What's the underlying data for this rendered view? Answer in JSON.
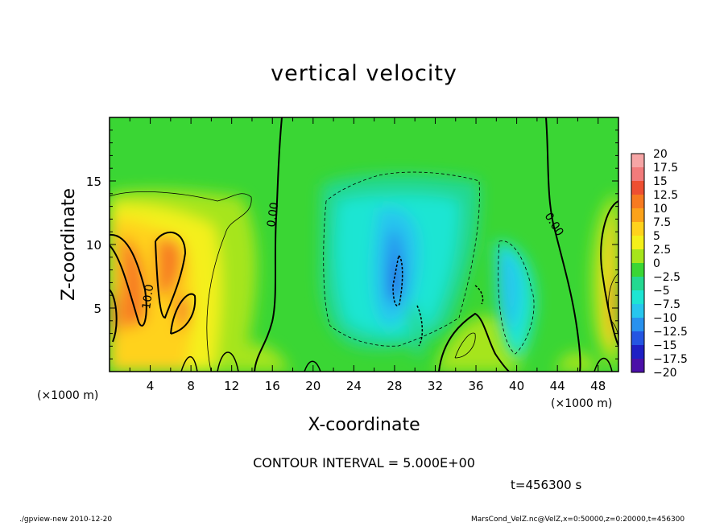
{
  "title": "vertical velocity",
  "chart_data": {
    "type": "heatmap",
    "title": "vertical velocity",
    "xlabel": "X-coordinate",
    "ylabel": "Z-coordinate",
    "x_unit": "(×1000 m)",
    "y_unit": "(×1000 m)",
    "xlim": [
      0,
      50
    ],
    "ylim": [
      0,
      20
    ],
    "x_ticks": [
      4,
      8,
      12,
      16,
      20,
      24,
      28,
      32,
      36,
      40,
      44,
      48
    ],
    "y_ticks": [
      5,
      10,
      15
    ],
    "colorbar": {
      "levels": [
        "20",
        "17.5",
        "15",
        "12.5",
        "10",
        "7.5",
        "5",
        "2.5",
        "0",
        "−2.5",
        "−5",
        "−7.5",
        "−10",
        "−12.5",
        "−15",
        "−17.5",
        "−20"
      ],
      "colors": [
        "#f6a5a5",
        "#f27b7b",
        "#ee4f32",
        "#f77a20",
        "#fba21a",
        "#ffd21c",
        "#f4f01a",
        "#a6e51b",
        "#3ad634",
        "#24d891",
        "#1de5d3",
        "#27c6ee",
        "#2891ee",
        "#2455e2",
        "#1e1fc4",
        "#4b10a8"
      ]
    },
    "contour_labels": [
      "0.00",
      "0.00",
      "10.0"
    ],
    "contour_interval": "CONTOUR INTERVAL = 5.000E+00",
    "time": "t=456300 s"
  },
  "footer": {
    "left": "./gpview-new   2010-12-20",
    "right": "MarsCond_VelZ.nc@VelZ,x=0:50000,z=0:20000,t=456300"
  }
}
